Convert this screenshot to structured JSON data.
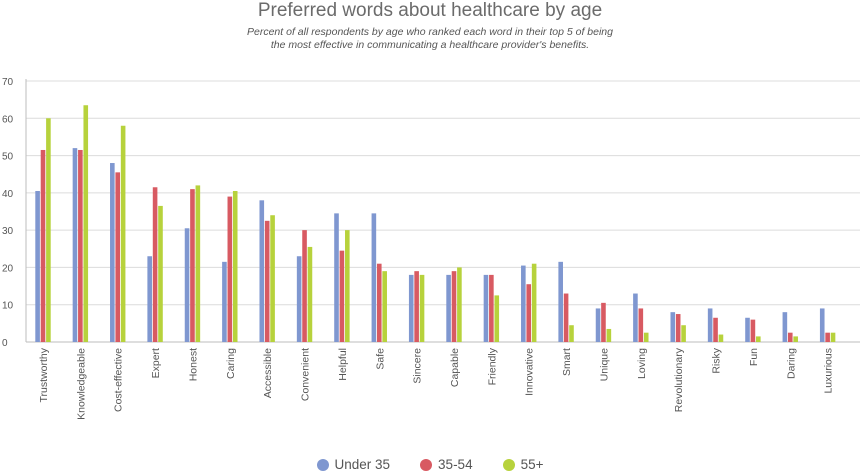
{
  "chart_data": {
    "type": "bar",
    "title": "Preferred words about healthcare by age",
    "subtitle": [
      "Percent of all respondents by age who ranked each word in their top 5 of being",
      "the most effective in communicating a healthcare provider's benefits."
    ],
    "ylim": [
      0,
      70
    ],
    "yticks": [
      0,
      10,
      20,
      30,
      40,
      50,
      60,
      70
    ],
    "grid": true,
    "legend_position": "bottom",
    "categories": [
      "Trustworthy",
      "Knowledgeable",
      "Cost-effective",
      "Expert",
      "Honest",
      "Caring",
      "Accessible",
      "Convenient",
      "Helpful",
      "Safe",
      "Sincere",
      "Capable",
      "Friendly",
      "Innovative",
      "Smart",
      "Unique",
      "Loving",
      "Revolutionary",
      "Risky",
      "Fun",
      "Daring",
      "Luxurious"
    ],
    "series": [
      {
        "name": "Under 35",
        "color": "#7f97d0",
        "values": [
          40.5,
          52,
          48,
          23,
          30.5,
          21.5,
          38,
          23,
          34.5,
          34.5,
          18,
          18,
          18,
          20.5,
          21.5,
          9,
          13,
          8,
          9,
          6.5,
          8,
          9
        ]
      },
      {
        "name": "35-54",
        "color": "#d85a62",
        "values": [
          51.5,
          51.5,
          45.5,
          41.5,
          41,
          39,
          32.5,
          30,
          24.5,
          21,
          19,
          19,
          18,
          15.5,
          13,
          10.5,
          9,
          7.5,
          6.5,
          6,
          2.5,
          2.5
        ]
      },
      {
        "name": "55+",
        "color": "#b7d23c",
        "values": [
          60,
          63.5,
          58,
          36.5,
          42,
          40.5,
          34,
          25.5,
          30,
          19,
          18,
          20,
          12.5,
          21,
          4.5,
          3.5,
          2.5,
          4.5,
          2,
          1.5,
          1.5,
          2.5
        ]
      }
    ]
  }
}
